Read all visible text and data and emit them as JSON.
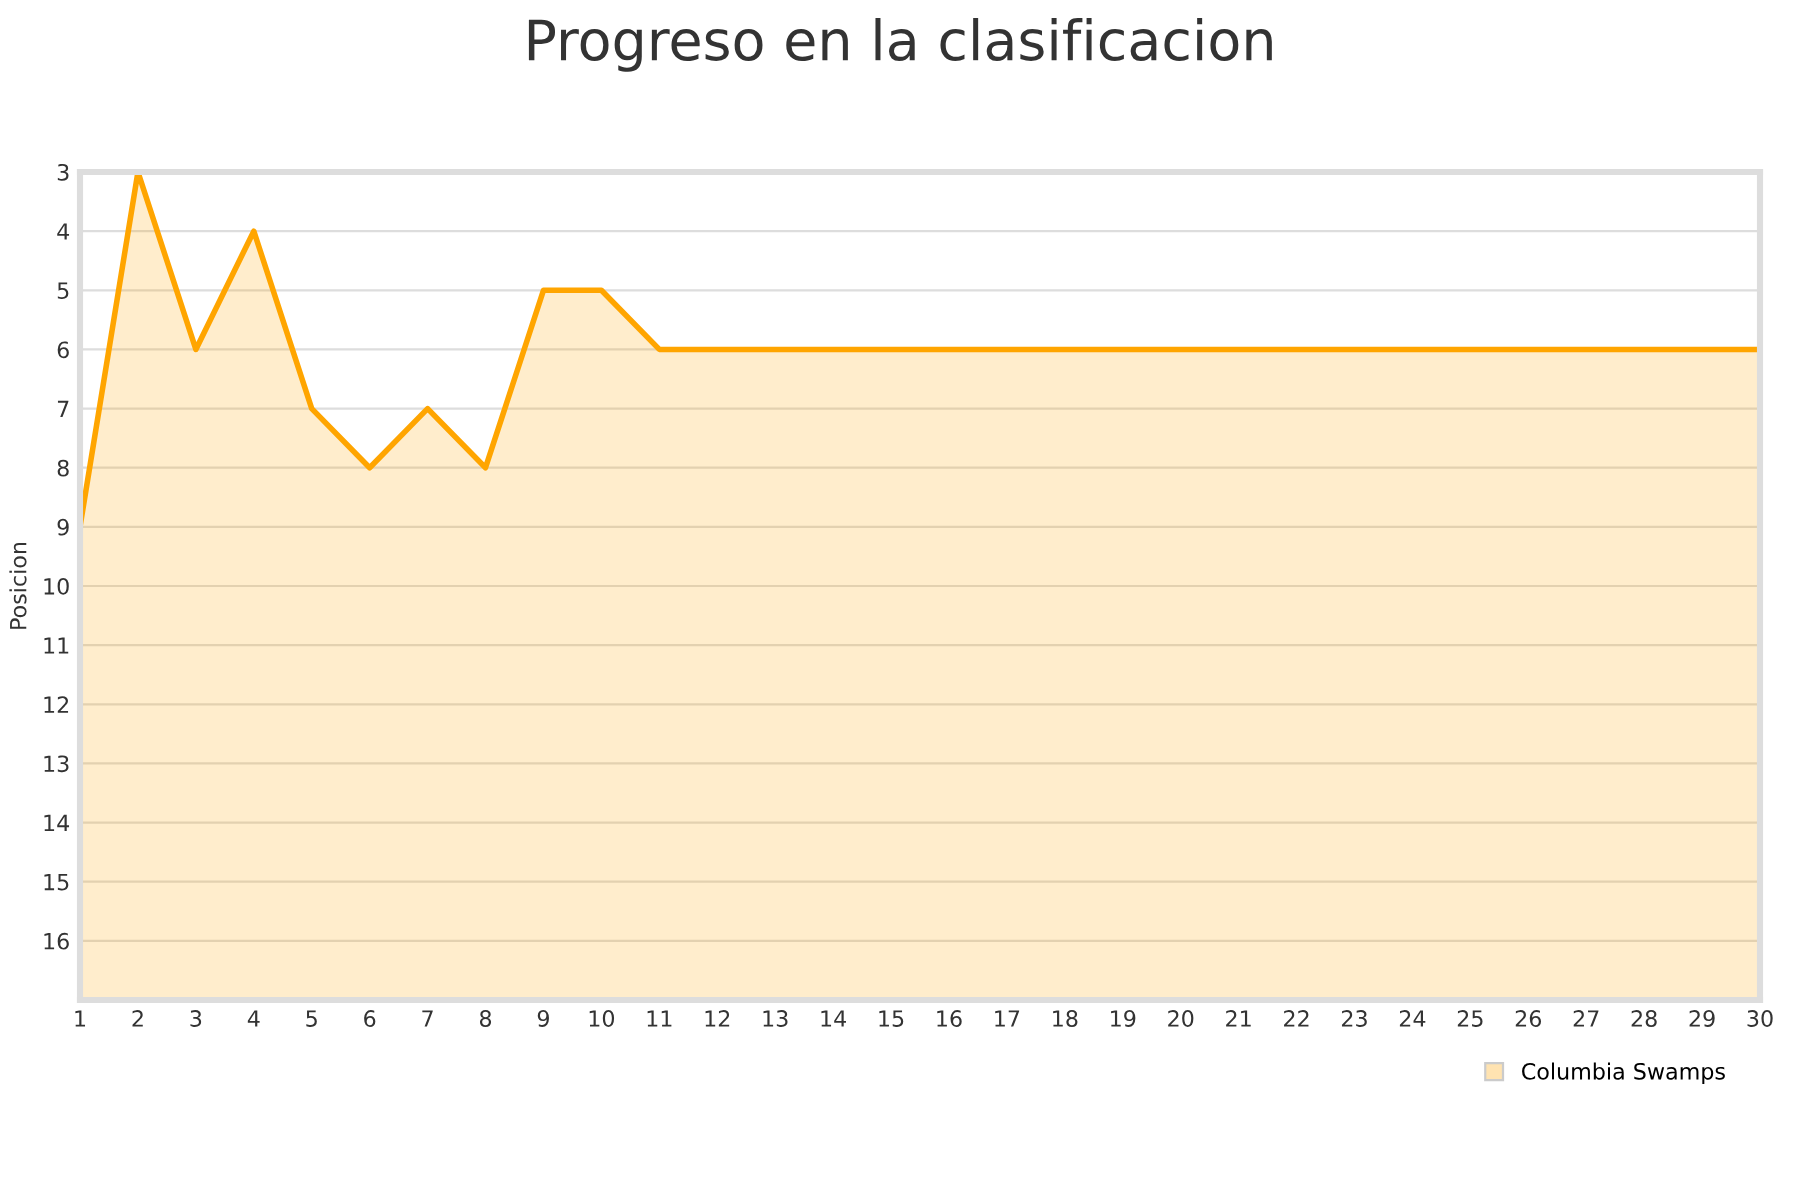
{
  "chart_data": {
    "type": "area",
    "title": "Progreso en la clasificacion",
    "ylabel": "Posicion",
    "x": [
      1,
      2,
      3,
      4,
      5,
      6,
      7,
      8,
      9,
      10,
      11,
      12,
      13,
      14,
      15,
      16,
      17,
      18,
      19,
      20,
      21,
      22,
      23,
      24,
      25,
      26,
      27,
      28,
      29,
      30
    ],
    "series": [
      {
        "name": "Columbia Swamps",
        "color": "#ffa500",
        "values": [
          9,
          3,
          6,
          4,
          7,
          8,
          7,
          8,
          5,
          5,
          6,
          6,
          6,
          6,
          6,
          6,
          6,
          6,
          6,
          6,
          6,
          6,
          6,
          6,
          6,
          6,
          6,
          6,
          6,
          6
        ]
      }
    ],
    "xlim": [
      1,
      30
    ],
    "xticks": [
      1,
      2,
      3,
      4,
      5,
      6,
      7,
      8,
      9,
      10,
      11,
      12,
      13,
      14,
      15,
      16,
      17,
      18,
      19,
      20,
      21,
      22,
      23,
      24,
      25,
      26,
      27,
      28,
      29,
      30
    ],
    "ylim": [
      17,
      3
    ],
    "yticks": [
      3,
      4,
      5,
      6,
      7,
      8,
      9,
      10,
      11,
      12,
      13,
      14,
      15,
      16
    ],
    "grid": "y",
    "legend": "bottom right",
    "marker": "none",
    "line_style": "solid"
  }
}
